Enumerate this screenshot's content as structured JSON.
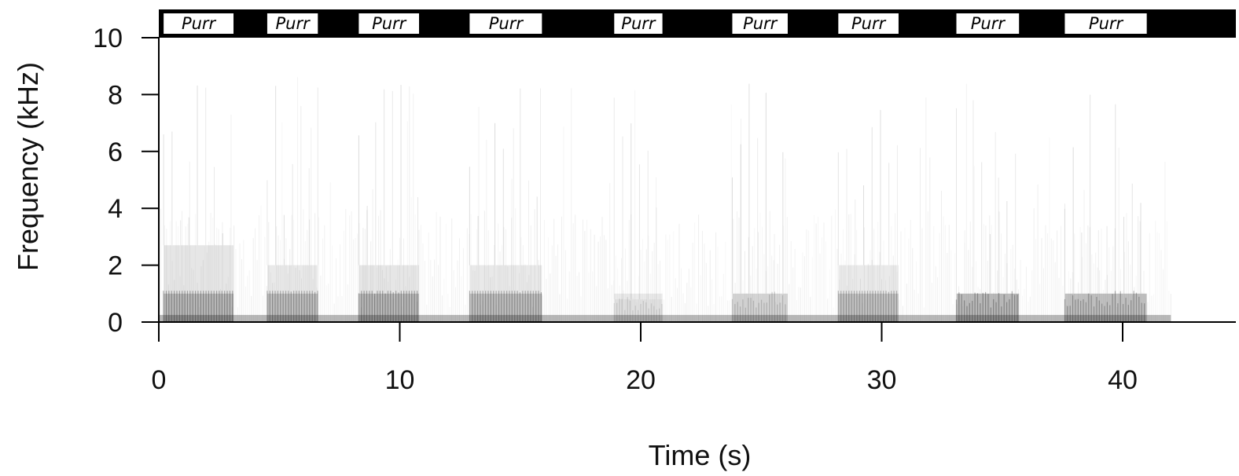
{
  "chart_data": {
    "type": "spectrogram",
    "title": "",
    "xlabel": "Time (s)",
    "ylabel": "Frequency (kHz)",
    "xlim": [
      0,
      42
    ],
    "ylim": [
      0,
      10
    ],
    "x_ticks": [
      0,
      10,
      20,
      30,
      40
    ],
    "y_ticks": [
      0,
      2,
      4,
      6,
      8,
      10
    ],
    "grid": false,
    "annotation_bar": {
      "color": "#000000",
      "segments": [
        {
          "label": "Purr",
          "start": 0.2,
          "end": 3.1
        },
        {
          "label": "Purr",
          "start": 4.5,
          "end": 6.6
        },
        {
          "label": "Purr",
          "start": 8.3,
          "end": 10.8
        },
        {
          "label": "Purr",
          "start": 12.9,
          "end": 15.9
        },
        {
          "label": "Purr",
          "start": 18.9,
          "end": 20.9
        },
        {
          "label": "Purr",
          "start": 23.8,
          "end": 26.1
        },
        {
          "label": "Purr",
          "start": 28.2,
          "end": 30.7
        },
        {
          "label": "Purr",
          "start": 33.1,
          "end": 35.7
        },
        {
          "label": "Purr",
          "start": 37.6,
          "end": 41.0
        }
      ]
    },
    "energy_regions": [
      {
        "start": 0.2,
        "end": 3.1,
        "fmax": 2.7,
        "intensity": 0.6
      },
      {
        "start": 4.5,
        "end": 6.6,
        "fmax": 2.0,
        "intensity": 0.55
      },
      {
        "start": 8.3,
        "end": 10.8,
        "fmax": 2.0,
        "intensity": 0.6
      },
      {
        "start": 12.9,
        "end": 15.9,
        "fmax": 2.0,
        "intensity": 0.55
      },
      {
        "start": 18.9,
        "end": 20.9,
        "fmax": 0.8,
        "intensity": 0.25
      },
      {
        "start": 23.8,
        "end": 26.1,
        "fmax": 1.0,
        "intensity": 0.35
      },
      {
        "start": 28.2,
        "end": 30.7,
        "fmax": 2.0,
        "intensity": 0.5
      },
      {
        "start": 33.1,
        "end": 35.7,
        "fmax": 1.0,
        "intensity": 0.6
      },
      {
        "start": 37.6,
        "end": 41.0,
        "fmax": 1.0,
        "intensity": 0.55
      }
    ],
    "colors": {
      "background": "#ffffff",
      "energy": "#1a1a1a",
      "axis": "#000000"
    }
  }
}
